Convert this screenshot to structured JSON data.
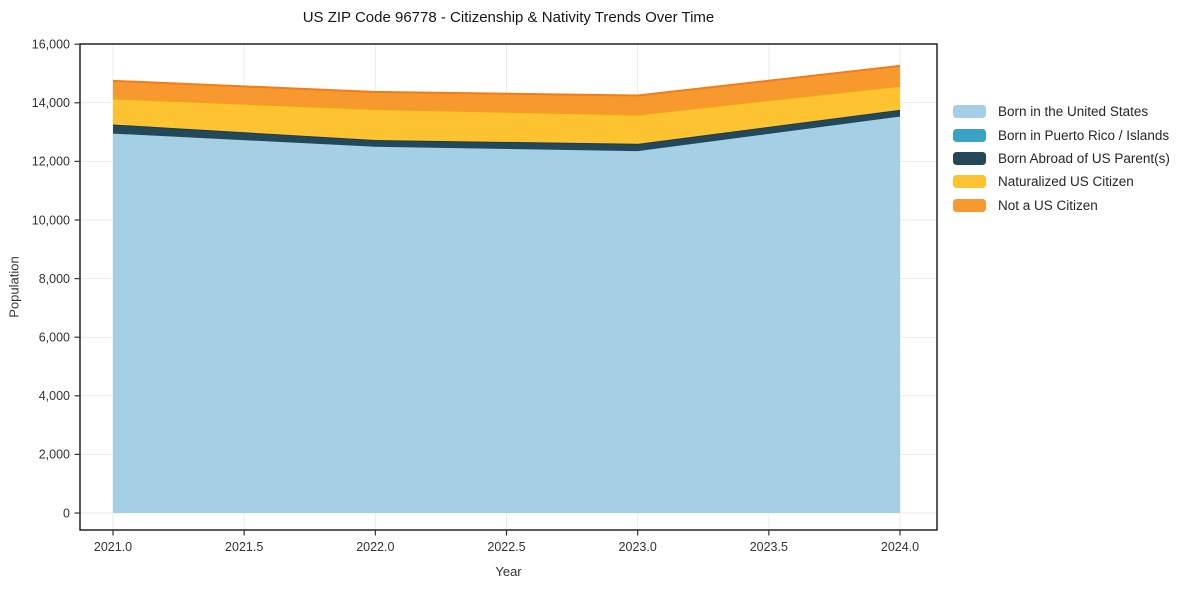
{
  "title": "US ZIP Code 96778 - Citizenship & Nativity Trends Over Time",
  "chart_data": {
    "type": "area",
    "stacked": true,
    "title": "US ZIP Code 96778 - Citizenship & Nativity Trends Over Time",
    "xlabel": "Year",
    "ylabel": "Population",
    "x": [
      2021,
      2022,
      2023,
      2024
    ],
    "series": [
      {
        "name": "Born in the United States",
        "values": [
          12950,
          12500,
          12350,
          13530
        ],
        "color": "#a5cfe5",
        "line_color": "#a5cfe5"
      },
      {
        "name": "Born in Puerto Rico / Islands",
        "values": [
          0,
          0,
          0,
          0
        ],
        "color": "#3aa2c4",
        "line_color": "#3aa2c4"
      },
      {
        "name": "Born Abroad of US Parent(s)",
        "values": [
          310,
          230,
          250,
          230
        ],
        "color": "#23485a",
        "line_color": "#1d3d4d"
      },
      {
        "name": "Naturalized US Citizen",
        "values": [
          890,
          1060,
          1000,
          820
        ],
        "color": "#fdc330",
        "line_color": "#f2a30f"
      },
      {
        "name": "Not a US Citizen",
        "values": [
          600,
          580,
          650,
          680
        ],
        "color": "#f8992f",
        "line_color": "#ef7e18"
      }
    ],
    "x_ticks": {
      "values": [
        2021.0,
        2021.5,
        2022.0,
        2022.5,
        2023.0,
        2023.5,
        2024.0
      ],
      "labels": [
        "2021.0",
        "2021.5",
        "2022.0",
        "2022.5",
        "2023.0",
        "2023.5",
        "2024.0"
      ]
    },
    "y_ticks": {
      "values": [
        0,
        2000,
        4000,
        6000,
        8000,
        10000,
        12000,
        14000,
        16000
      ],
      "labels": [
        "0",
        "2,000",
        "4,000",
        "6,000",
        "8,000",
        "10,000",
        "12,000",
        "14,000",
        "16,000"
      ]
    },
    "xlim": [
      2021,
      2024
    ],
    "ylim": [
      0,
      16000
    ],
    "grid": true,
    "legend_position": "right"
  },
  "style": {
    "grid_color": "#ebebeb",
    "border_color": "#000000",
    "tick_color": "#333333",
    "tick_label_color": "#333333",
    "background": "#ffffff"
  }
}
